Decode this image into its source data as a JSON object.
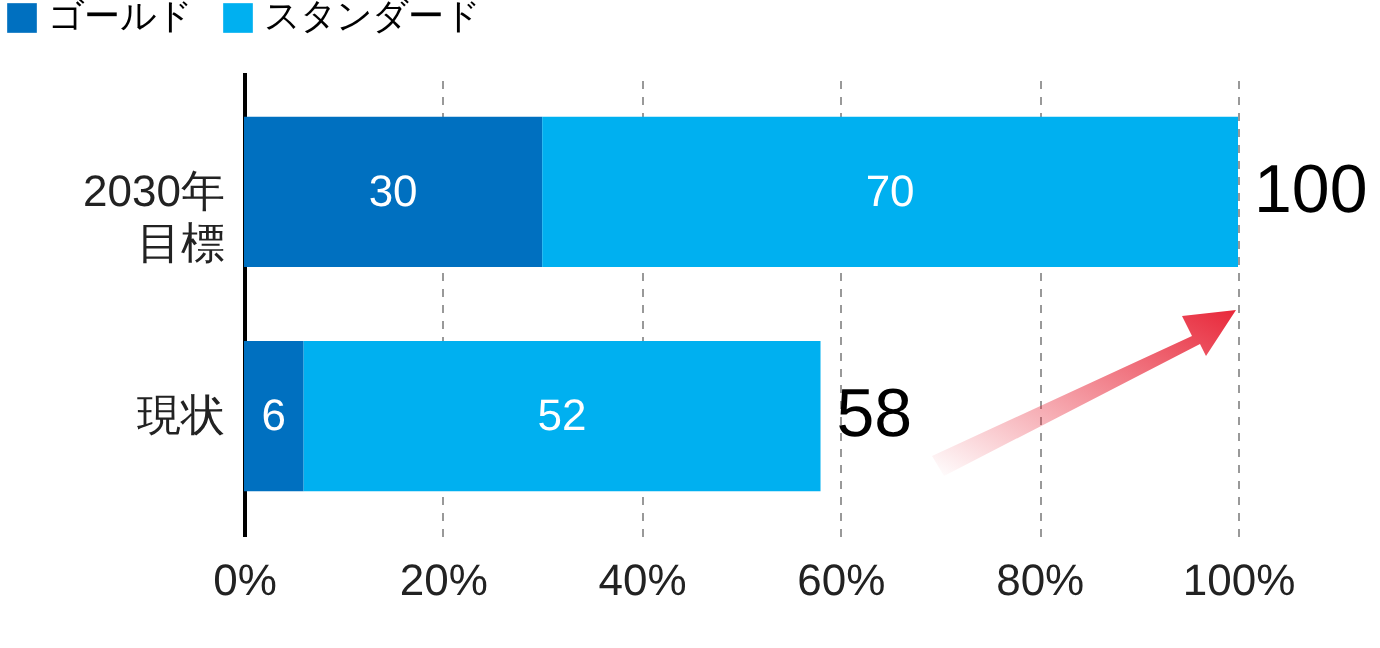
{
  "chart_data": {
    "type": "bar",
    "orientation": "horizontal",
    "stacked": true,
    "categories": [
      "2030年目標",
      "現状"
    ],
    "series": [
      {
        "name": "ゴールド",
        "color": "#0070c0",
        "values": [
          30,
          6
        ]
      },
      {
        "name": "スタンダード",
        "color": "#00b0f0",
        "values": [
          70,
          52
        ]
      }
    ],
    "data_labels": true,
    "totals": [
      "100",
      "58"
    ],
    "xlim": [
      0,
      100
    ],
    "xticks": [
      {
        "value": 0,
        "label": "0%"
      },
      {
        "value": 20,
        "label": "20%"
      },
      {
        "value": 40,
        "label": "40%"
      },
      {
        "value": 60,
        "label": "60%"
      },
      {
        "value": 80,
        "label": "80%"
      },
      {
        "value": 100,
        "label": "100%"
      }
    ],
    "grid": "x",
    "legend": "top left"
  }
}
